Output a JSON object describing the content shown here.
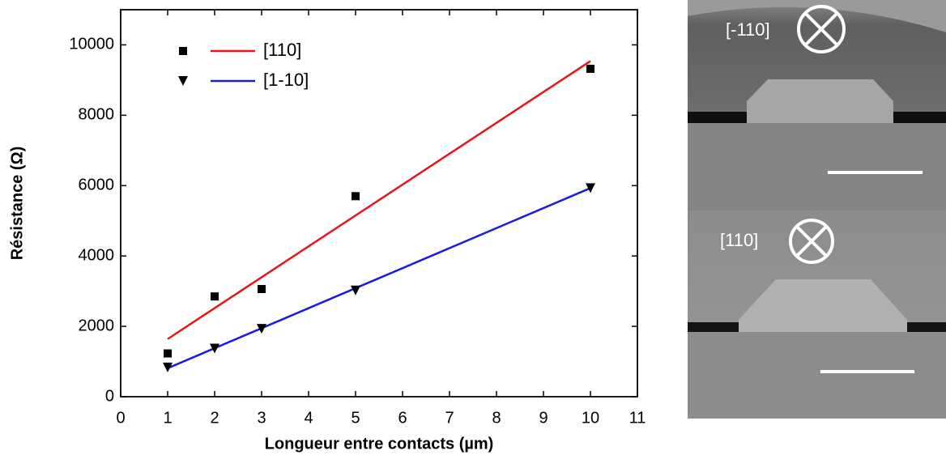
{
  "chart_data": {
    "type": "scatter",
    "xlabel": "Longueur entre contacts (µm)",
    "ylabel": "Résistance (Ω)",
    "xlim": [
      0,
      11
    ],
    "xticks": [
      0,
      1,
      2,
      3,
      4,
      5,
      6,
      7,
      8,
      9,
      10,
      11
    ],
    "ylim": [
      0,
      11000
    ],
    "yticks": [
      0,
      2000,
      4000,
      6000,
      8000,
      10000
    ],
    "series": [
      {
        "name": "[110]",
        "color": "#000000",
        "marker": "square",
        "x": [
          1,
          2,
          3,
          5,
          10
        ],
        "values": [
          1230,
          2850,
          3060,
          5700,
          9320
        ],
        "fit": {
          "color": "#e8141b",
          "x": [
            1,
            10
          ],
          "values": [
            1640,
            9540
          ]
        }
      },
      {
        "name": "[1-10]",
        "color": "#000000",
        "marker": "triangle-down",
        "x": [
          1,
          2,
          3,
          5,
          10
        ],
        "values": [
          830,
          1370,
          1930,
          3020,
          5930
        ],
        "fit": {
          "color": "#1a1ae0",
          "x": [
            1,
            10
          ],
          "values": [
            810,
            5930
          ]
        }
      }
    ]
  },
  "images": [
    {
      "label": "[-110]"
    },
    {
      "label": "[110]"
    }
  ]
}
